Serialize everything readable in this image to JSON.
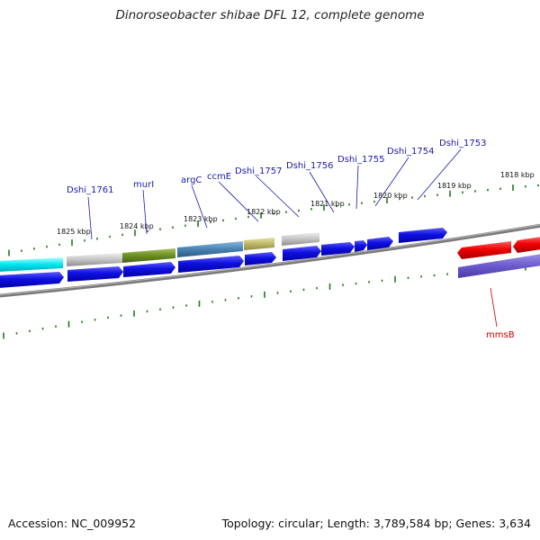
{
  "title": "Dinoroseobacter shibae DFL 12, complete genome",
  "footer": {
    "accession": "Accession: NC_009952",
    "summary": "Topology: circular; Length: 3,789,584 bp; Genes: 3,634"
  },
  "colors": {
    "backbone": "#7a7a7a",
    "tick": "#1f7a1f",
    "gene_forward": "#1a1ae6",
    "gene_reverse": "#e60000",
    "label_blue": "#1a1ab0",
    "label_red": "#cc0000"
  },
  "kbp_labels": [
    "1825 kbp",
    "1824 kbp",
    "1823 kbp",
    "1822 kbp",
    "1821 kbp",
    "1820 kbp",
    "1819 kbp",
    "1818 kbp"
  ],
  "gene_labels": [
    "Dshi_1761",
    "murI",
    "argC",
    "ccmE",
    "Dshi_1757",
    "Dshi_1756",
    "Dshi_1755",
    "Dshi_1754",
    "Dshi_1753",
    "mmsB"
  ]
}
